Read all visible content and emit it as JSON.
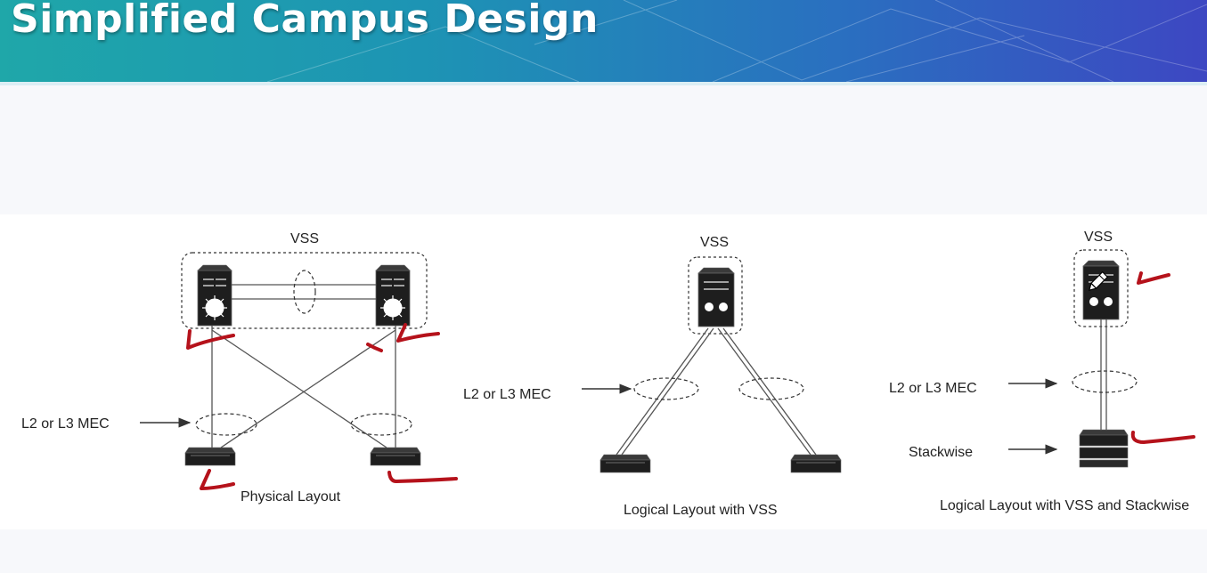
{
  "slide": {
    "title": "Simplified Campus Design"
  },
  "diagram": {
    "physical": {
      "vss_label": "VSS",
      "mec_label": "L2 or L3 MEC",
      "caption": "Physical Layout"
    },
    "logical_vss": {
      "vss_label": "VSS",
      "mec_label": "L2 or L3 MEC",
      "caption": "Logical Layout with VSS"
    },
    "logical_stackwise": {
      "vss_label": "VSS",
      "mec_label": "L2 or L3 MEC",
      "stackwise_label": "Stackwise",
      "caption": "Logical Layout with VSS and Stackwise"
    }
  },
  "colors": {
    "annotation": "#b5121b",
    "device": "#1e1e1e",
    "link": "#555555"
  }
}
